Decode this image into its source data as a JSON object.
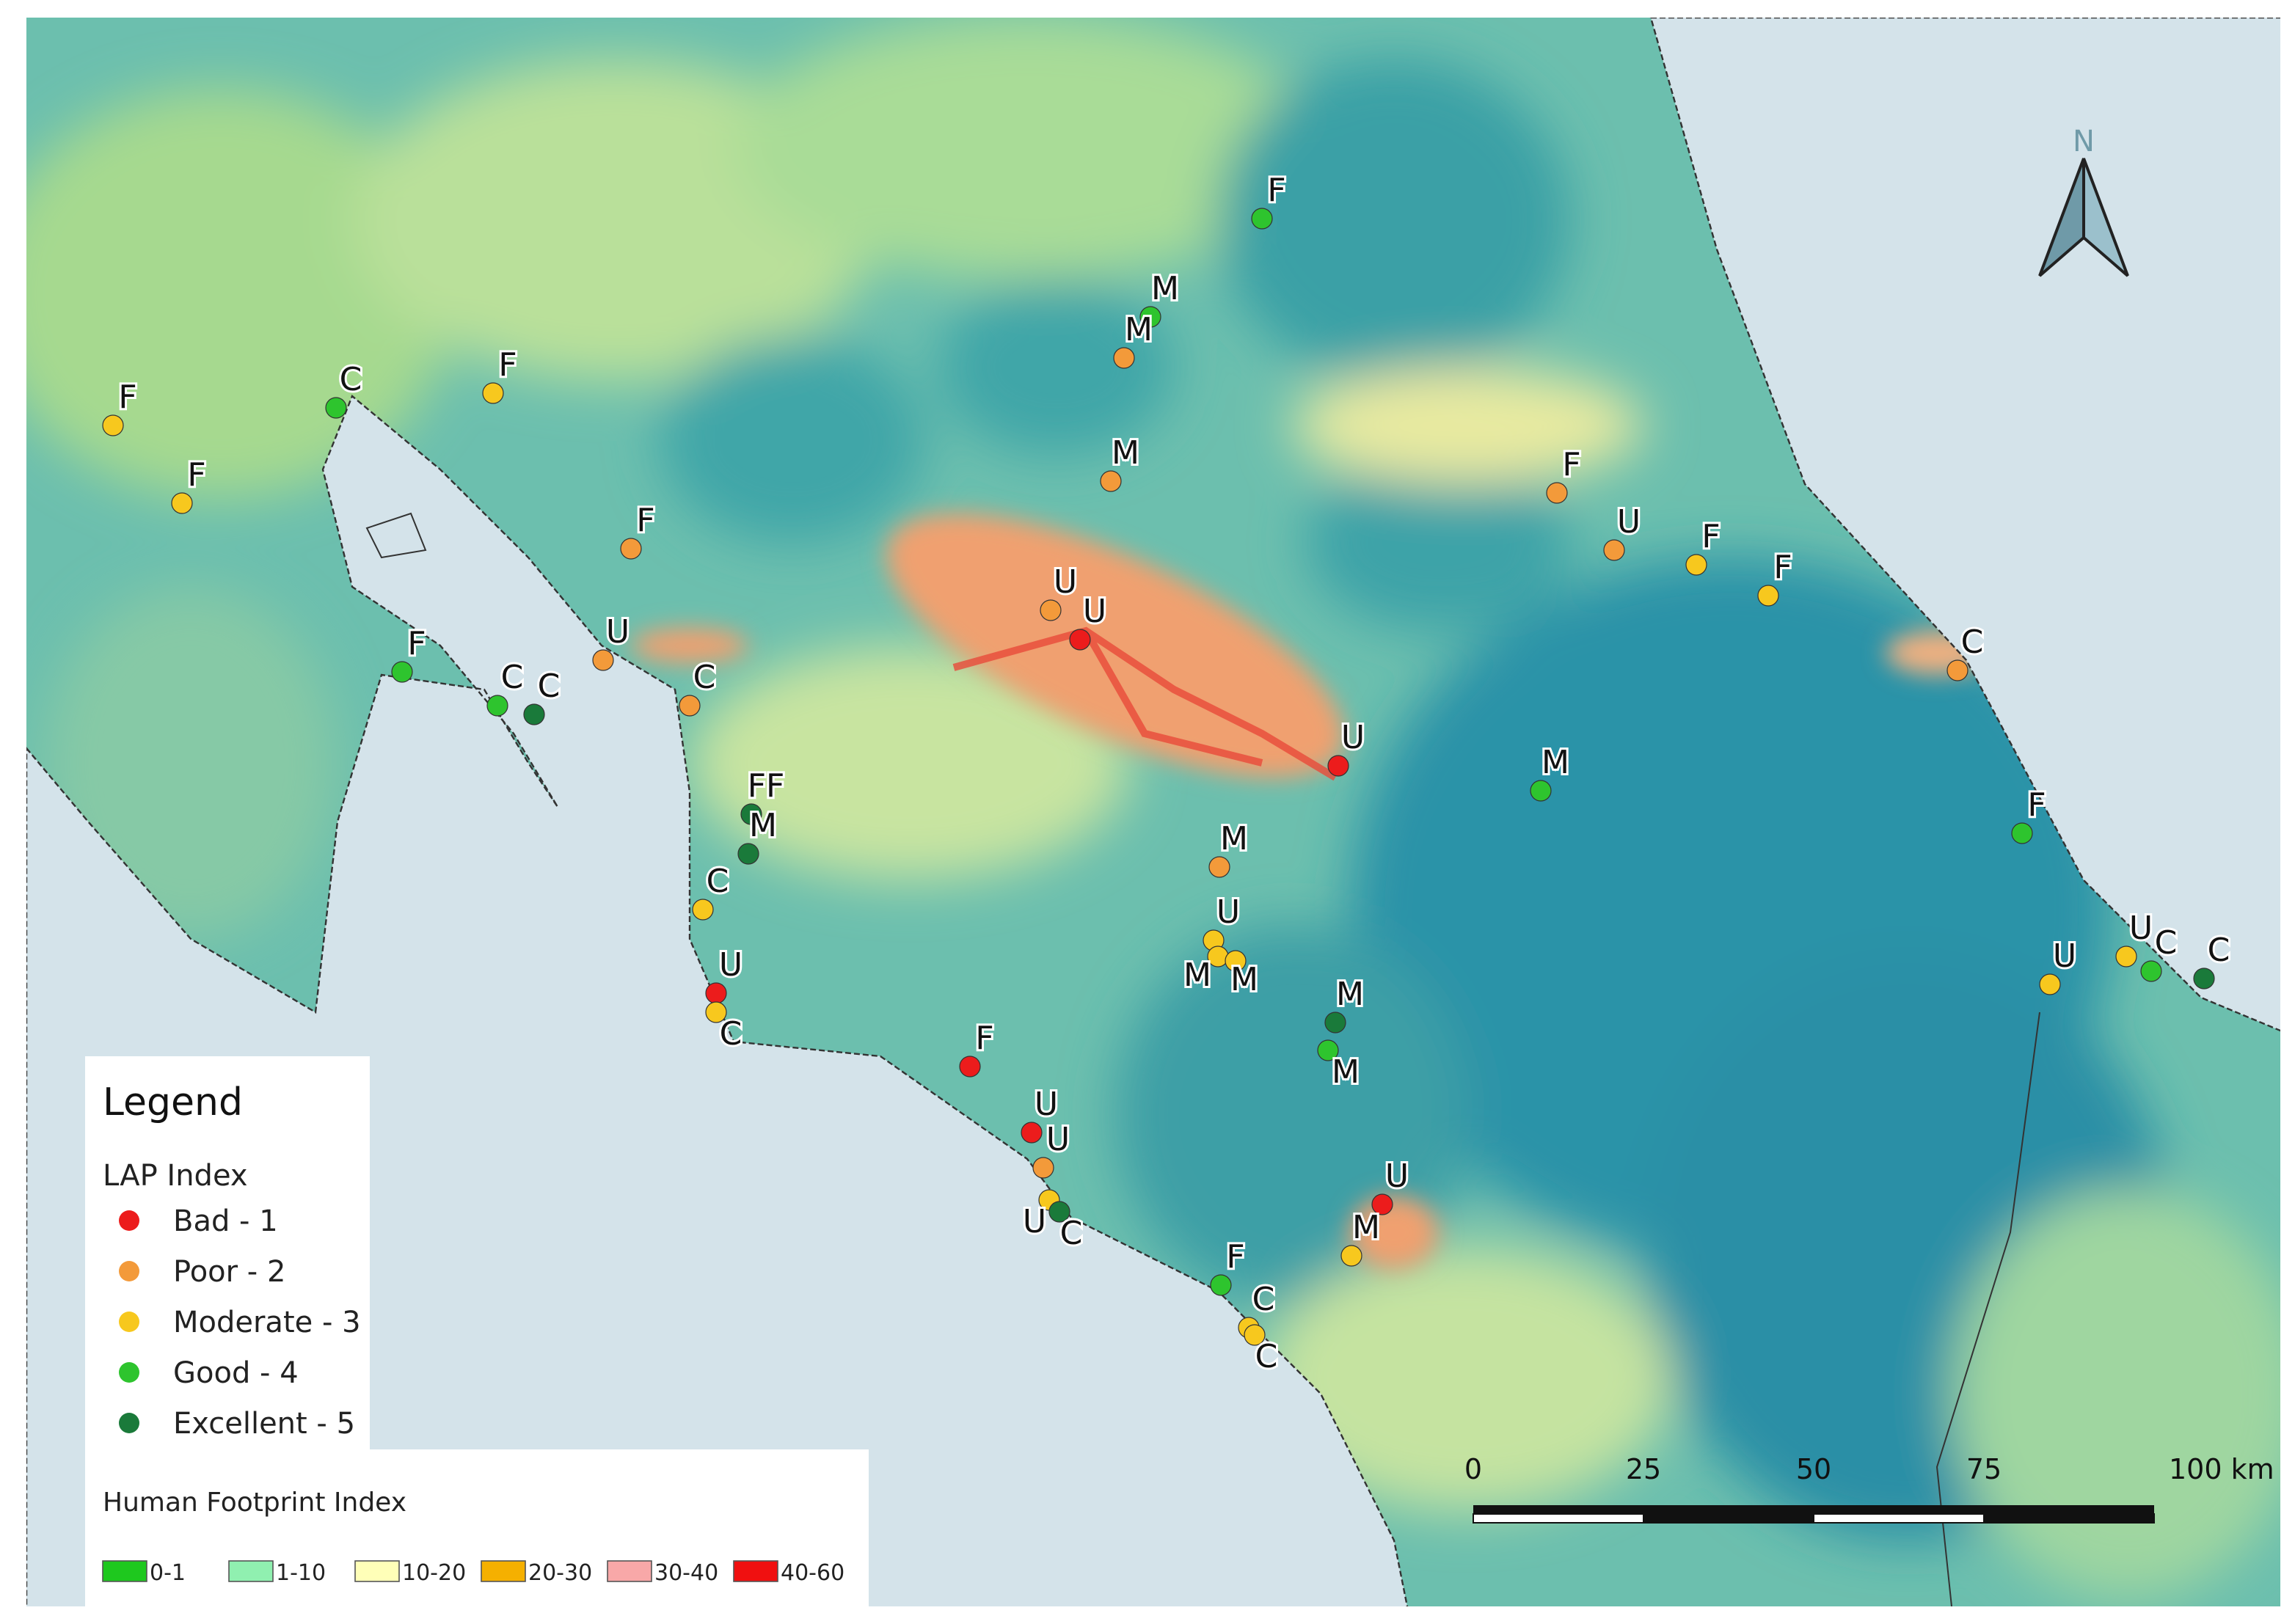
{
  "legend": {
    "title": "Legend",
    "lap_title": "LAP Index",
    "lap_classes": [
      {
        "label": "Bad - 1",
        "value": 1,
        "color": "#ec1c1c"
      },
      {
        "label": "Poor - 2",
        "value": 2,
        "color": "#f39a3a"
      },
      {
        "label": "Moderate - 3",
        "value": 3,
        "color": "#f7c81e"
      },
      {
        "label": "Good - 4",
        "value": 4,
        "color": "#2ec42e"
      },
      {
        "label": "Excellent - 5",
        "value": 5,
        "color": "#1a7a3a"
      }
    ],
    "hfi_title": "Human Footprint Index",
    "hfi_classes": [
      {
        "label": "0-1",
        "color": "#1ec81e"
      },
      {
        "label": "1-10",
        "color": "#90f0b0"
      },
      {
        "label": "10-20",
        "color": "#ffffb8"
      },
      {
        "label": "20-30",
        "color": "#f5b000"
      },
      {
        "label": "30-40",
        "color": "#f8a8a8"
      },
      {
        "label": "40-60",
        "color": "#f01010"
      }
    ]
  },
  "north": "N",
  "scale_labels": [
    "0",
    "25",
    "50",
    "75",
    "100 km"
  ],
  "points": [
    {
      "label": "F",
      "lap": 3
    },
    {
      "label": "F",
      "lap": 3
    },
    {
      "label": "C",
      "lap": 4
    },
    {
      "label": "F",
      "lap": 3
    },
    {
      "label": "F",
      "lap": 2
    },
    {
      "label": "U",
      "lap": 2
    },
    {
      "label": "F",
      "lap": 4
    },
    {
      "label": "C",
      "lap": 4
    },
    {
      "label": "C",
      "lap": 5
    },
    {
      "label": "C",
      "lap": 2
    },
    {
      "label": "F",
      "lap": 4
    },
    {
      "label": "M",
      "lap": 4
    },
    {
      "label": "M",
      "lap": 2
    },
    {
      "label": "M",
      "lap": 2
    },
    {
      "label": "U",
      "lap": 2
    },
    {
      "label": "U",
      "lap": 1
    },
    {
      "label": "F",
      "lap": 2
    },
    {
      "label": "U",
      "lap": 2
    },
    {
      "label": "F",
      "lap": 3
    },
    {
      "label": "F",
      "lap": 3
    },
    {
      "label": "C",
      "lap": 2
    },
    {
      "label": "U",
      "lap": 1
    },
    {
      "label": "M",
      "lap": 4
    },
    {
      "label": "F",
      "lap": 4
    },
    {
      "label": "FF",
      "lap": 5
    },
    {
      "label": "M",
      "lap": 5
    },
    {
      "label": "C",
      "lap": 3
    },
    {
      "label": "M",
      "lap": 2
    },
    {
      "label": "U",
      "lap": 3
    },
    {
      "label": "M",
      "lap": 3
    },
    {
      "label": "M",
      "lap": 3
    },
    {
      "label": "U",
      "lap": 1
    },
    {
      "label": "C",
      "lap": 3
    },
    {
      "label": "M",
      "lap": 5
    },
    {
      "label": "M",
      "lap": 4
    },
    {
      "label": "F",
      "lap": 1
    },
    {
      "label": "U",
      "lap": 1
    },
    {
      "label": "U",
      "lap": 2
    },
    {
      "label": "U",
      "lap": 3
    },
    {
      "label": "C",
      "lap": 5
    },
    {
      "label": "U",
      "lap": 1
    },
    {
      "label": "M",
      "lap": 3
    },
    {
      "label": "F",
      "lap": 4
    },
    {
      "label": "C",
      "lap": 3
    },
    {
      "label": "C",
      "lap": 3
    },
    {
      "label": "U",
      "lap": 3
    },
    {
      "label": "U",
      "lap": 3
    },
    {
      "label": "C",
      "lap": 4
    },
    {
      "label": "C",
      "lap": 5
    }
  ]
}
